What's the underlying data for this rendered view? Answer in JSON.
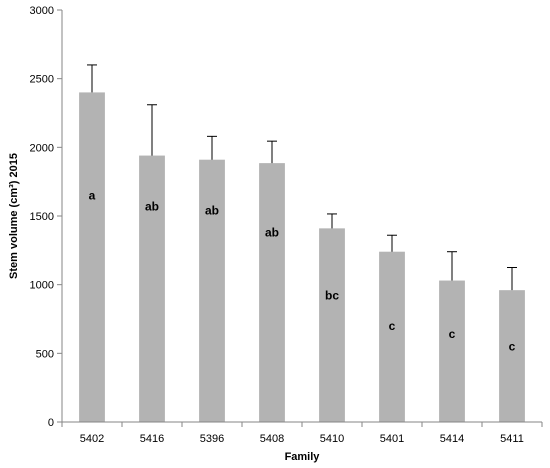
{
  "chart_data": {
    "type": "bar",
    "categories": [
      "5402",
      "5416",
      "5396",
      "5408",
      "5410",
      "5401",
      "5414",
      "5411"
    ],
    "values": [
      2400,
      1940,
      1910,
      1885,
      1410,
      1240,
      1030,
      960
    ],
    "error_upper": [
      200,
      370,
      170,
      160,
      105,
      120,
      210,
      165
    ],
    "group_labels": [
      "a",
      "ab",
      "ab",
      "ab",
      "bc",
      "c",
      "c",
      "c"
    ],
    "group_label_values": [
      1650,
      1570,
      1540,
      1380,
      920,
      700,
      640,
      550
    ],
    "xlabel": "Family",
    "ylabel": "Stem volume (cm³) 2015",
    "ylim": [
      0,
      3000
    ],
    "yticks": [
      0,
      500,
      1000,
      1500,
      2000,
      2500,
      3000
    ],
    "grid": false,
    "bar_color": "#b3b3b3",
    "axis_color": "#868686"
  }
}
